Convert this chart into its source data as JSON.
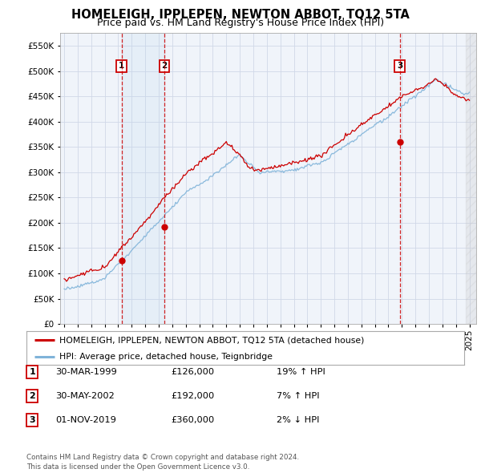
{
  "title": "HOMELEIGH, IPPLEPEN, NEWTON ABBOT, TQ12 5TA",
  "subtitle": "Price paid vs. HM Land Registry's House Price Index (HPI)",
  "ytick_values": [
    0,
    50000,
    100000,
    150000,
    200000,
    250000,
    300000,
    350000,
    400000,
    450000,
    500000,
    550000
  ],
  "ylim": [
    0,
    575000
  ],
  "xlim_start": 1994.7,
  "xlim_end": 2025.5,
  "sale_dates": [
    1999.247,
    2002.413,
    2019.836
  ],
  "sale_prices": [
    126000,
    192000,
    360000
  ],
  "sale_labels": [
    "1",
    "2",
    "3"
  ],
  "hpi_color": "#7fb3d9",
  "price_color": "#cc0000",
  "vline_color": "#cc0000",
  "legend_label_red": "HOMELEIGH, IPPLEPEN, NEWTON ABBOT, TQ12 5TA (detached house)",
  "legend_label_blue": "HPI: Average price, detached house, Teignbridge",
  "table_data": [
    [
      "1",
      "30-MAR-1999",
      "£126,000",
      "19% ↑ HPI"
    ],
    [
      "2",
      "30-MAY-2002",
      "£192,000",
      "7% ↑ HPI"
    ],
    [
      "3",
      "01-NOV-2019",
      "£360,000",
      "2% ↓ HPI"
    ]
  ],
  "footer_text": "Contains HM Land Registry data © Crown copyright and database right 2024.\nThis data is licensed under the Open Government Licence v3.0.",
  "plot_bg_color": "#ffffff",
  "grid_color": "#d0d8e8",
  "title_fontsize": 10.5,
  "subtitle_fontsize": 9,
  "tick_fontsize": 7.5
}
